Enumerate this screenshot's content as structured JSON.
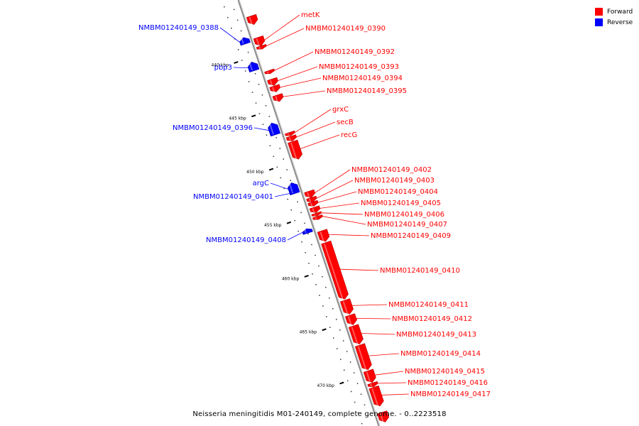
{
  "caption": "Neisseria meningitidis M01-240149, complete genome. - 0..2223518",
  "legend": [
    {
      "label": "Forward",
      "color": "#ff0000"
    },
    {
      "label": "Reverse",
      "color": "#0000ff"
    }
  ],
  "colors": {
    "forward": "#ff0000",
    "reverse": "#0000ff",
    "backbone": "#8c8c8c",
    "tick": "#000000"
  },
  "axis": {
    "unit": "kbp",
    "ticks": [
      {
        "kbp": 440,
        "label": "440 kbp"
      },
      {
        "kbp": 445,
        "label": "445 kbp"
      },
      {
        "kbp": 450,
        "label": "450 kbp"
      },
      {
        "kbp": 455,
        "label": "455 kbp"
      },
      {
        "kbp": 460,
        "label": "460 kbp"
      },
      {
        "kbp": 465,
        "label": "465 kbp"
      },
      {
        "kbp": 470,
        "label": "470 kbp"
      }
    ]
  },
  "features": [
    {
      "name": "",
      "strand": "forward",
      "start": 436.5,
      "end": 437.3
    },
    {
      "name": "NMBM01240149_0388",
      "strand": "reverse",
      "start": 438.1,
      "end": 438.7
    },
    {
      "name": "metK",
      "strand": "forward",
      "start": 438.5,
      "end": 439.3
    },
    {
      "name": "NMBM01240149_0390",
      "strand": "forward",
      "start": 439.3,
      "end": 439.6
    },
    {
      "name": "pbp3",
      "strand": "reverse",
      "start": 440.4,
      "end": 441.2
    },
    {
      "name": "NMBM01240149_0392",
      "strand": "forward",
      "start": 441.6,
      "end": 441.9
    },
    {
      "name": "NMBM01240149_0393",
      "strand": "forward",
      "start": 442.4,
      "end": 443.0
    },
    {
      "name": "NMBM01240149_0394",
      "strand": "forward",
      "start": 443.05,
      "end": 443.6
    },
    {
      "name": "NMBM01240149_0395",
      "strand": "forward",
      "start": 443.9,
      "end": 444.5
    },
    {
      "name": "NMBM01240149_0396",
      "strand": "reverse",
      "start": 446.1,
      "end": 447.2
    },
    {
      "name": "grxC",
      "strand": "forward",
      "start": 447.4,
      "end": 447.7
    },
    {
      "name": "secB",
      "strand": "forward",
      "start": 447.75,
      "end": 448.2
    },
    {
      "name": "recG",
      "strand": "forward",
      "start": 448.25,
      "end": 449.9
    },
    {
      "name": "argC",
      "strand": "reverse",
      "start": 451.7,
      "end": 452.6
    },
    {
      "name": "NMBM01240149_0401",
      "strand": "reverse",
      "start": 452.4,
      "end": 452.7
    },
    {
      "name": "NMBM01240149_0402",
      "strand": "forward",
      "start": 452.9,
      "end": 453.5
    },
    {
      "name": "NMBM01240149_0403",
      "strand": "forward",
      "start": 453.5,
      "end": 453.9
    },
    {
      "name": "NMBM01240149_0404",
      "strand": "forward",
      "start": 453.9,
      "end": 454.3
    },
    {
      "name": "NMBM01240149_0405",
      "strand": "forward",
      "start": 454.4,
      "end": 454.9
    },
    {
      "name": "NMBM01240149_0406",
      "strand": "forward",
      "start": 454.95,
      "end": 455.2
    },
    {
      "name": "NMBM01240149_0407",
      "strand": "forward",
      "start": 455.25,
      "end": 455.55
    },
    {
      "name": "NMBM01240149_0408",
      "strand": "reverse",
      "start": 456.0,
      "end": 456.4
    },
    {
      "name": "NMBM01240149_0409",
      "strand": "forward",
      "start": 456.6,
      "end": 457.6
    },
    {
      "name": "NMBM01240149_0410",
      "strand": "forward",
      "start": 457.7,
      "end": 463.0
    },
    {
      "name": "NMBM01240149_0411",
      "strand": "forward",
      "start": 463.1,
      "end": 464.4
    },
    {
      "name": "NMBM01240149_0412",
      "strand": "forward",
      "start": 464.5,
      "end": 465.4
    },
    {
      "name": "NMBM01240149_0413",
      "strand": "forward",
      "start": 465.5,
      "end": 467.2
    },
    {
      "name": "NMBM01240149_0414",
      "strand": "forward",
      "start": 467.3,
      "end": 469.6
    },
    {
      "name": "NMBM01240149_0415",
      "strand": "forward",
      "start": 469.7,
      "end": 470.8
    },
    {
      "name": "NMBM01240149_0416",
      "strand": "forward",
      "start": 470.85,
      "end": 471.2
    },
    {
      "name": "NMBM01240149_0417",
      "strand": "forward",
      "start": 471.25,
      "end": 473.0
    },
    {
      "name": "",
      "strand": "forward",
      "start": 473.6,
      "end": 474.5
    }
  ]
}
